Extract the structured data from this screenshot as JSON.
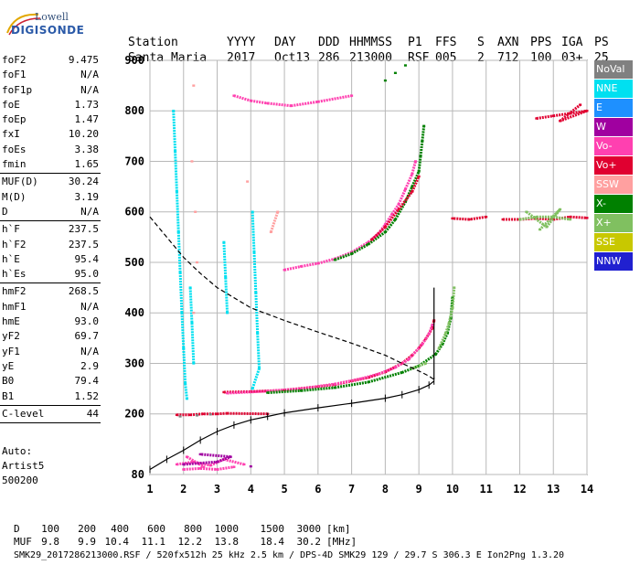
{
  "logo": {
    "line1": "Lowell",
    "line2": "DIGISONDE"
  },
  "header": {
    "row1": [
      "Station",
      "YYYY",
      "DAY",
      "DDD",
      "HHMMSS",
      "P1",
      "FFS",
      "S",
      "AXN",
      "PPS",
      "IGA",
      "PS"
    ],
    "row2": [
      "Santa Maria",
      "2017",
      "Oct13",
      "286",
      "213000",
      "RSF",
      "005",
      "2",
      "712",
      "100",
      "03+",
      "25"
    ]
  },
  "params": [
    {
      "group": [
        {
          "k": "foF2",
          "v": "9.475"
        },
        {
          "k": "foF1",
          "v": "N/A"
        },
        {
          "k": "foF1p",
          "v": "N/A"
        },
        {
          "k": "foE",
          "v": "1.73"
        },
        {
          "k": "foEp",
          "v": "1.47"
        },
        {
          "k": "fxI",
          "v": "10.20"
        },
        {
          "k": "foEs",
          "v": "3.38"
        },
        {
          "k": "fmin",
          "v": "1.65"
        }
      ]
    },
    {
      "group": [
        {
          "k": "MUF(D)",
          "v": "30.24"
        },
        {
          "k": "M(D)",
          "v": "3.19"
        },
        {
          "k": "D",
          "v": "N/A"
        }
      ]
    },
    {
      "group": [
        {
          "k": "h`F",
          "v": "237.5"
        },
        {
          "k": "h`F2",
          "v": "237.5"
        },
        {
          "k": "h`E",
          "v": "95.4"
        },
        {
          "k": "h`Es",
          "v": "95.0"
        }
      ]
    },
    {
      "group": [
        {
          "k": "hmF2",
          "v": "268.5"
        },
        {
          "k": "hmF1",
          "v": "N/A"
        },
        {
          "k": "hmE",
          "v": "93.0"
        },
        {
          "k": "yF2",
          "v": "69.7"
        },
        {
          "k": "yF1",
          "v": "N/A"
        },
        {
          "k": "yE",
          "v": "2.9"
        },
        {
          "k": "B0",
          "v": "79.4"
        },
        {
          "k": "B1",
          "v": "1.52"
        }
      ]
    },
    {
      "group": [
        {
          "k": "C-level",
          "v": "44"
        }
      ]
    }
  ],
  "auto": {
    "line1": "Auto:",
    "line2": "Artist5",
    "line3": "500200"
  },
  "legend": [
    {
      "label": "NoVal",
      "color": "#808080"
    },
    {
      "label": "NNE",
      "color": "#00e0f0"
    },
    {
      "label": "E",
      "color": "#1e90ff"
    },
    {
      "label": "W",
      "color": "#a000a0"
    },
    {
      "label": "Vo-",
      "color": "#ff40b0"
    },
    {
      "label": "Vo+",
      "color": "#e00030"
    },
    {
      "label": "SSW",
      "color": "#ffa0a0"
    },
    {
      "label": "X-",
      "color": "#008000"
    },
    {
      "label": "X+",
      "color": "#80c060"
    },
    {
      "label": "SSE",
      "color": "#c8c800"
    },
    {
      "label": "NNW",
      "color": "#2020d0"
    }
  ],
  "bottom": {
    "d_label": "D",
    "d_values": [
      "100",
      "200",
      "400",
      "600",
      "800",
      "1000",
      "1500",
      "3000"
    ],
    "d_unit": "[km]",
    "muf_label": "MUF",
    "muf_values": [
      "9.8",
      "9.9",
      "10.4",
      "11.1",
      "12.2",
      "13.8",
      "18.4",
      "30.2"
    ],
    "muf_unit": "[MHz]",
    "footer": "SMK29_2017286213000.RSF / 520fx512h 25 kHz 2.5 km / DPS-4D SMK29 129 / 29.7 S 306.3 E Ion2Png 1.3.20"
  },
  "chart_data": {
    "type": "scatter",
    "xlim": [
      1,
      14
    ],
    "ylim": [
      80,
      900
    ],
    "x_ticks": [
      1,
      2,
      3,
      4,
      5,
      6,
      7,
      8,
      9,
      10,
      11,
      12,
      13,
      14
    ],
    "y_ticks": [
      80,
      200,
      300,
      400,
      500,
      600,
      700,
      800,
      900
    ],
    "grid": true,
    "legend_position": "right",
    "series": [
      {
        "color": "#e00030",
        "points": [
          [
            3.2,
            243
          ],
          [
            4,
            244
          ],
          [
            5,
            247
          ],
          [
            6,
            254
          ],
          [
            6.5,
            258
          ],
          [
            7,
            265
          ],
          [
            7.5,
            272
          ],
          [
            8,
            283
          ],
          [
            8.5,
            300
          ],
          [
            8.8,
            316
          ],
          [
            9,
            330
          ],
          [
            9.2,
            348
          ],
          [
            9.4,
            370
          ],
          [
            9.45,
            385
          ]
        ]
      },
      {
        "color": "#ff40b0",
        "points": [
          [
            3.3,
            241
          ],
          [
            4.5,
            245
          ],
          [
            5.5,
            250
          ],
          [
            6.5,
            259
          ],
          [
            7.3,
            270
          ],
          [
            7.8,
            279
          ],
          [
            8.3,
            292
          ],
          [
            8.7,
            308
          ],
          [
            9.1,
            338
          ],
          [
            9.3,
            358
          ],
          [
            9.4,
            376
          ]
        ]
      },
      {
        "color": "#008000",
        "points": [
          [
            4.5,
            242
          ],
          [
            5.5,
            246
          ],
          [
            6.5,
            252
          ],
          [
            7.5,
            263
          ],
          [
            8.5,
            282
          ],
          [
            9,
            295
          ],
          [
            9.5,
            318
          ],
          [
            9.7,
            338
          ],
          [
            9.85,
            360
          ],
          [
            9.95,
            390
          ],
          [
            10,
            430
          ]
        ]
      },
      {
        "color": "#80c060",
        "points": [
          [
            9.6,
            330
          ],
          [
            9.8,
            360
          ],
          [
            9.9,
            380
          ],
          [
            10,
            410
          ],
          [
            10.05,
            450
          ],
          [
            9.2,
            300
          ],
          [
            8.8,
            290
          ]
        ]
      },
      {
        "color": "#ff40b0",
        "points": [
          [
            5,
            485
          ],
          [
            5.5,
            492
          ],
          [
            6,
            498
          ],
          [
            6.5,
            507
          ],
          [
            7,
            520
          ],
          [
            7.5,
            540
          ],
          [
            7.8,
            557
          ],
          [
            8,
            575
          ],
          [
            8.2,
            595
          ],
          [
            8.4,
            615
          ],
          [
            8.6,
            645
          ],
          [
            8.8,
            675
          ],
          [
            8.9,
            700
          ]
        ]
      },
      {
        "color": "#008000",
        "points": [
          [
            6.5,
            505
          ],
          [
            7,
            517
          ],
          [
            7.5,
            536
          ],
          [
            8,
            560
          ],
          [
            8.3,
            585
          ],
          [
            8.6,
            620
          ],
          [
            8.8,
            650
          ],
          [
            9,
            680
          ],
          [
            9.05,
            710
          ],
          [
            9.1,
            740
          ],
          [
            9.15,
            770
          ]
        ]
      },
      {
        "color": "#e00030",
        "points": [
          [
            7.6,
            545
          ],
          [
            8,
            570
          ],
          [
            8.4,
            605
          ],
          [
            8.8,
            640
          ],
          [
            9,
            670
          ]
        ]
      },
      {
        "color": "#e00030",
        "points": [
          [
            11.5,
            585
          ],
          [
            12,
            585
          ],
          [
            12.5,
            587
          ],
          [
            13,
            585
          ],
          [
            13.5,
            590
          ],
          [
            14,
            588
          ],
          [
            11,
            590
          ],
          [
            10.5,
            585
          ],
          [
            10,
            587
          ]
        ]
      },
      {
        "color": "#80c060",
        "points": [
          [
            12,
            585
          ],
          [
            12.5,
            590
          ],
          [
            13,
            590
          ],
          [
            13.5,
            585
          ],
          [
            12.2,
            600
          ],
          [
            12.8,
            570
          ],
          [
            13.2,
            605
          ],
          [
            12.6,
            565
          ]
        ]
      },
      {
        "color": "#e00030",
        "points": [
          [
            12.5,
            785
          ],
          [
            13,
            790
          ],
          [
            13.5,
            795
          ],
          [
            14,
            800
          ],
          [
            13.2,
            780
          ],
          [
            13.8,
            812
          ]
        ]
      },
      {
        "color": "#ff40b0",
        "points": [
          [
            3.5,
            830
          ],
          [
            4,
            820
          ],
          [
            4.5,
            815
          ],
          [
            5.2,
            810
          ],
          [
            6,
            818
          ],
          [
            7,
            830
          ]
        ]
      },
      {
        "color": "#008000",
        "points": [
          [
            8,
            860
          ],
          [
            8.3,
            875
          ],
          [
            8.6,
            890
          ]
        ]
      },
      {
        "color": "#ff40b0",
        "points": [
          [
            2,
            90
          ],
          [
            2.5,
            92
          ],
          [
            3,
            90
          ],
          [
            3.5,
            95
          ],
          [
            1.8,
            100
          ],
          [
            2.3,
            105
          ],
          [
            2.8,
            98
          ],
          [
            3.2,
            110
          ],
          [
            3.8,
            100
          ],
          [
            2.1,
            115
          ],
          [
            2.6,
            95
          ]
        ]
      },
      {
        "color": "#a000a0",
        "points": [
          [
            2,
            100
          ],
          [
            3,
            105
          ],
          [
            3.4,
            115
          ],
          [
            2.5,
            120
          ],
          [
            4,
            96
          ]
        ]
      },
      {
        "color": "#e00030",
        "points": [
          [
            1.8,
            198
          ],
          [
            2.2,
            198
          ],
          [
            2.6,
            200
          ],
          [
            3,
            200
          ],
          [
            3.3,
            201
          ],
          [
            4.5,
            200
          ]
        ]
      },
      {
        "color": "#808080",
        "points": [
          [
            1.9,
            195
          ],
          [
            2.4,
            197
          ],
          [
            2.8,
            199
          ]
        ]
      },
      {
        "color": "#00e0f0",
        "points": [
          [
            1.7,
            800
          ],
          [
            1.75,
            720
          ],
          [
            1.8,
            640
          ],
          [
            1.85,
            560
          ],
          [
            1.9,
            480
          ],
          [
            1.95,
            400
          ],
          [
            2,
            330
          ],
          [
            2.05,
            260
          ],
          [
            2.1,
            230
          ],
          [
            3.2,
            540
          ],
          [
            3.25,
            470
          ],
          [
            3.3,
            400
          ],
          [
            4.05,
            600
          ],
          [
            4.1,
            520
          ],
          [
            4.15,
            440
          ],
          [
            4.2,
            360
          ],
          [
            4.25,
            290
          ],
          [
            4.05,
            250
          ],
          [
            2.2,
            450
          ],
          [
            2.25,
            380
          ],
          [
            2.3,
            300
          ]
        ]
      },
      {
        "color": "#ffa0a0",
        "points": [
          [
            2.3,
            850
          ],
          [
            2.25,
            700
          ],
          [
            2.35,
            600
          ],
          [
            2.4,
            500
          ],
          [
            2.3,
            400
          ],
          [
            3.9,
            660
          ],
          [
            4.6,
            560
          ],
          [
            4.8,
            600
          ]
        ]
      }
    ],
    "lines": [
      {
        "name": "virtual height trace",
        "style": "solid",
        "color": "#000",
        "points": [
          [
            1,
            90
          ],
          [
            1.5,
            110
          ],
          [
            2,
            128
          ],
          [
            2.5,
            148
          ],
          [
            3,
            165
          ],
          [
            3.5,
            178
          ],
          [
            4,
            188
          ],
          [
            4.5,
            195
          ],
          [
            5,
            202
          ],
          [
            6,
            212
          ],
          [
            7,
            221
          ],
          [
            8,
            231
          ],
          [
            8.5,
            238
          ],
          [
            9,
            248
          ],
          [
            9.3,
            257
          ],
          [
            9.45,
            265
          ]
        ]
      },
      {
        "name": "profile",
        "style": "dashed",
        "color": "#000",
        "points": [
          [
            1,
            590
          ],
          [
            1.5,
            550
          ],
          [
            2,
            510
          ],
          [
            2.5,
            478
          ],
          [
            3,
            450
          ],
          [
            4,
            410
          ],
          [
            5,
            385
          ],
          [
            6,
            362
          ],
          [
            7,
            340
          ],
          [
            8,
            316
          ],
          [
            8.5,
            300
          ],
          [
            9,
            285
          ],
          [
            9.3,
            275
          ],
          [
            9.45,
            268
          ]
        ]
      },
      {
        "name": "vertical line",
        "style": "solid",
        "color": "#000",
        "points": [
          [
            9.45,
            268
          ],
          [
            9.45,
            450
          ]
        ]
      }
    ]
  }
}
